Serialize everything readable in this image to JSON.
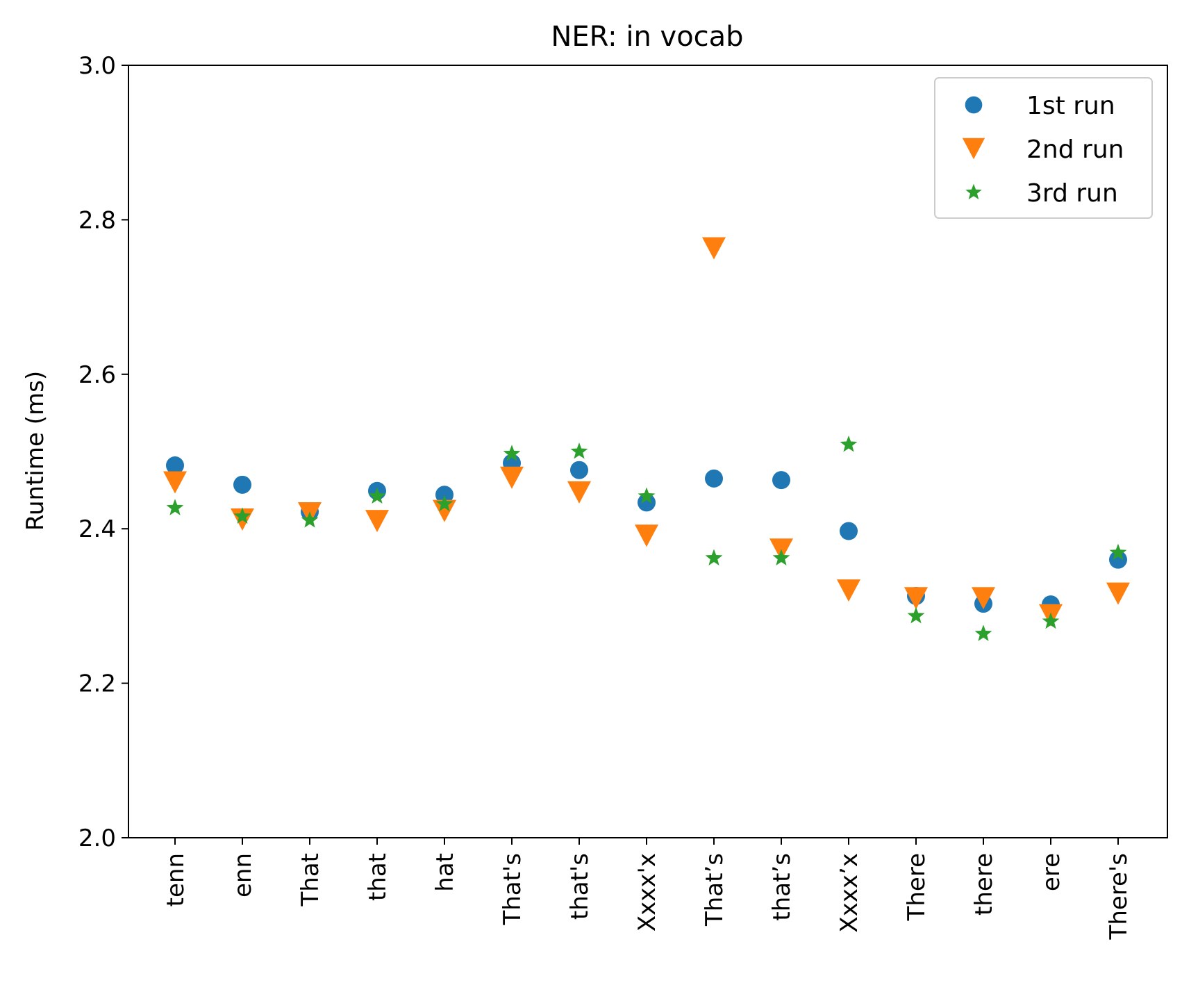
{
  "chart_data": {
    "type": "scatter",
    "title": "NER: in vocab",
    "xlabel": "",
    "ylabel": "Runtime (ms)",
    "ylim": [
      2.0,
      3.0
    ],
    "yticks": [
      "2.0",
      "2.2",
      "2.4",
      "2.6",
      "2.8",
      "3.0"
    ],
    "categories": [
      "tenn",
      "enn",
      "That",
      "that",
      "hat",
      "That's",
      "that's",
      "Xxxx'x",
      "That’s",
      "that’s",
      "Xxxx’x",
      "There",
      "there",
      "ere",
      "There's"
    ],
    "legend_position": "top-right",
    "grid": false,
    "series": [
      {
        "name": "1st run",
        "marker": "circle",
        "color": "#1f77b4",
        "values": [
          2.482,
          2.457,
          2.422,
          2.449,
          2.444,
          2.485,
          2.476,
          2.434,
          2.465,
          2.463,
          2.397,
          2.313,
          2.303,
          2.302,
          2.36
        ]
      },
      {
        "name": "2nd run",
        "marker": "triangle-down",
        "color": "#ff7f0e",
        "values": [
          2.46,
          2.412,
          2.42,
          2.41,
          2.423,
          2.466,
          2.447,
          2.391,
          2.763,
          2.373,
          2.32,
          2.31,
          2.31,
          2.288,
          2.316
        ]
      },
      {
        "name": "3rd run",
        "marker": "star",
        "color": "#2ca02c",
        "values": [
          2.427,
          2.416,
          2.411,
          2.442,
          2.432,
          2.497,
          2.5,
          2.442,
          2.362,
          2.362,
          2.509,
          2.287,
          2.264,
          2.28,
          2.369
        ]
      }
    ]
  }
}
